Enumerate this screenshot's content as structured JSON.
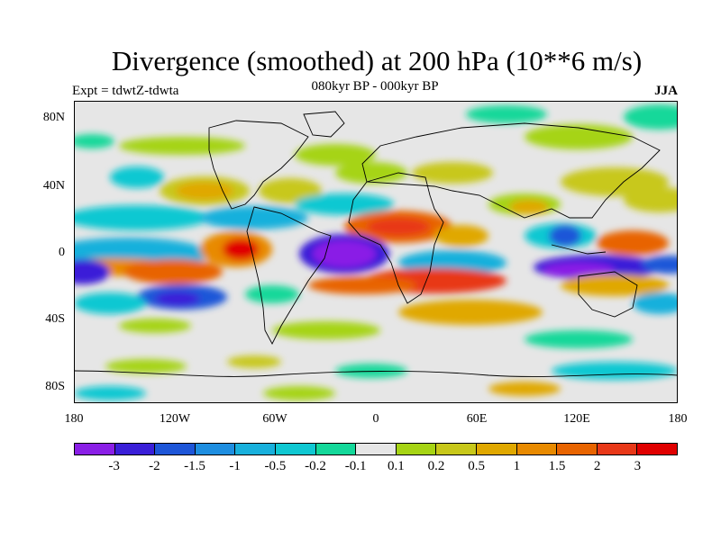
{
  "title": "Divergence (smoothed) at 200 hPa (10**6 m/s)",
  "experiment": "Expt = tdwtZ-tdwta",
  "period": "080kyr BP - 000kyr BP",
  "season": "JJA",
  "y_ticks": [
    "80N",
    "40N",
    "0",
    "40S",
    "80S"
  ],
  "x_ticks": [
    "180",
    "120W",
    "60W",
    "0",
    "60E",
    "120E",
    "180"
  ],
  "colorbar": {
    "colors": [
      "#8a1fe6",
      "#3a1fd8",
      "#1e56d8",
      "#1e8ee0",
      "#18b0dc",
      "#10c8d2",
      "#14d89a",
      "#e6e6e6",
      "#a6d414",
      "#c8c81a",
      "#e0a800",
      "#e88a00",
      "#e86400",
      "#e83818",
      "#e00000"
    ],
    "labels": [
      "-3",
      "-2",
      "-1.5",
      "-1",
      "-0.5",
      "-0.2",
      "-0.1",
      "0.1",
      "0.2",
      "0.5",
      "1",
      "1.5",
      "2",
      "3"
    ]
  }
}
